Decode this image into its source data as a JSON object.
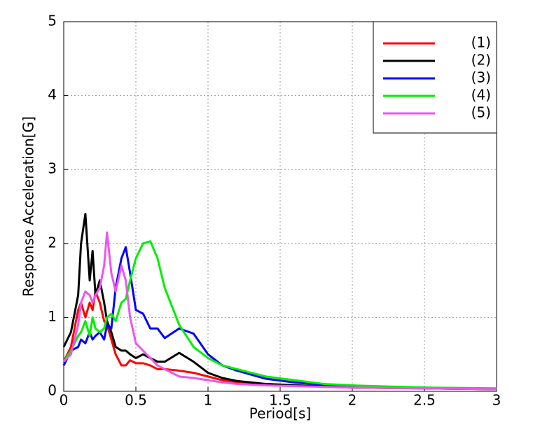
{
  "chart_data": {
    "type": "line",
    "xlabel": "Period[s]",
    "ylabel": "Response Acceleration[G]",
    "x": [
      0,
      0.05,
      0.1,
      0.12,
      0.15,
      0.18,
      0.2,
      0.22,
      0.25,
      0.28,
      0.3,
      0.33,
      0.36,
      0.4,
      0.43,
      0.46,
      0.5,
      0.55,
      0.6,
      0.65,
      0.7,
      0.8,
      0.9,
      1.0,
      1.1,
      1.2,
      1.4,
      1.6,
      1.8,
      2.0,
      2.5,
      3.0
    ],
    "series": [
      {
        "name": "(1)",
        "color": "#ff0000",
        "values": [
          0.4,
          0.6,
          1.1,
          1.2,
          1.0,
          1.2,
          1.1,
          1.35,
          1.2,
          0.95,
          0.9,
          0.7,
          0.5,
          0.35,
          0.35,
          0.42,
          0.38,
          0.38,
          0.35,
          0.3,
          0.3,
          0.28,
          0.25,
          0.2,
          0.15,
          0.12,
          0.1,
          0.08,
          0.06,
          0.05,
          0.04,
          0.03
        ]
      },
      {
        "name": "(2)",
        "color": "#000000",
        "values": [
          0.6,
          0.8,
          1.3,
          2.0,
          2.4,
          1.5,
          1.9,
          1.3,
          1.5,
          1.2,
          0.95,
          0.8,
          0.6,
          0.55,
          0.55,
          0.5,
          0.45,
          0.5,
          0.45,
          0.4,
          0.4,
          0.52,
          0.4,
          0.25,
          0.18,
          0.14,
          0.1,
          0.08,
          0.07,
          0.05,
          0.04,
          0.03
        ]
      },
      {
        "name": "(3)",
        "color": "#0000ff",
        "values": [
          0.35,
          0.55,
          0.6,
          0.7,
          0.65,
          0.8,
          0.7,
          0.75,
          0.8,
          0.7,
          0.9,
          0.85,
          1.4,
          1.8,
          1.95,
          1.6,
          1.1,
          1.05,
          0.85,
          0.85,
          0.72,
          0.85,
          0.78,
          0.5,
          0.35,
          0.28,
          0.17,
          0.12,
          0.09,
          0.07,
          0.05,
          0.03
        ]
      },
      {
        "name": "(4)",
        "color": "#00ee00",
        "values": [
          0.4,
          0.55,
          0.75,
          0.8,
          0.95,
          0.75,
          1.0,
          0.85,
          0.8,
          0.85,
          1.0,
          1.05,
          0.95,
          1.2,
          1.25,
          1.5,
          1.8,
          2.0,
          2.03,
          1.8,
          1.4,
          0.9,
          0.6,
          0.45,
          0.35,
          0.3,
          0.2,
          0.15,
          0.1,
          0.08,
          0.05,
          0.04
        ]
      },
      {
        "name": "(5)",
        "color": "#ee55ee",
        "values": [
          0.4,
          0.5,
          0.9,
          1.2,
          1.35,
          1.3,
          1.2,
          1.3,
          1.4,
          1.7,
          2.15,
          1.6,
          1.35,
          1.7,
          1.5,
          1.0,
          0.65,
          0.55,
          0.45,
          0.35,
          0.3,
          0.2,
          0.18,
          0.15,
          0.12,
          0.1,
          0.08,
          0.07,
          0.06,
          0.05,
          0.04,
          0.03
        ]
      }
    ],
    "xlim": [
      0,
      3
    ],
    "xticks": [
      0,
      0.5,
      1,
      1.5,
      2,
      2.5,
      3
    ],
    "ylim": [
      0,
      5
    ],
    "yticks": [
      0,
      1,
      2,
      3,
      4,
      5
    ],
    "grid": true,
    "legend": "upper right"
  }
}
